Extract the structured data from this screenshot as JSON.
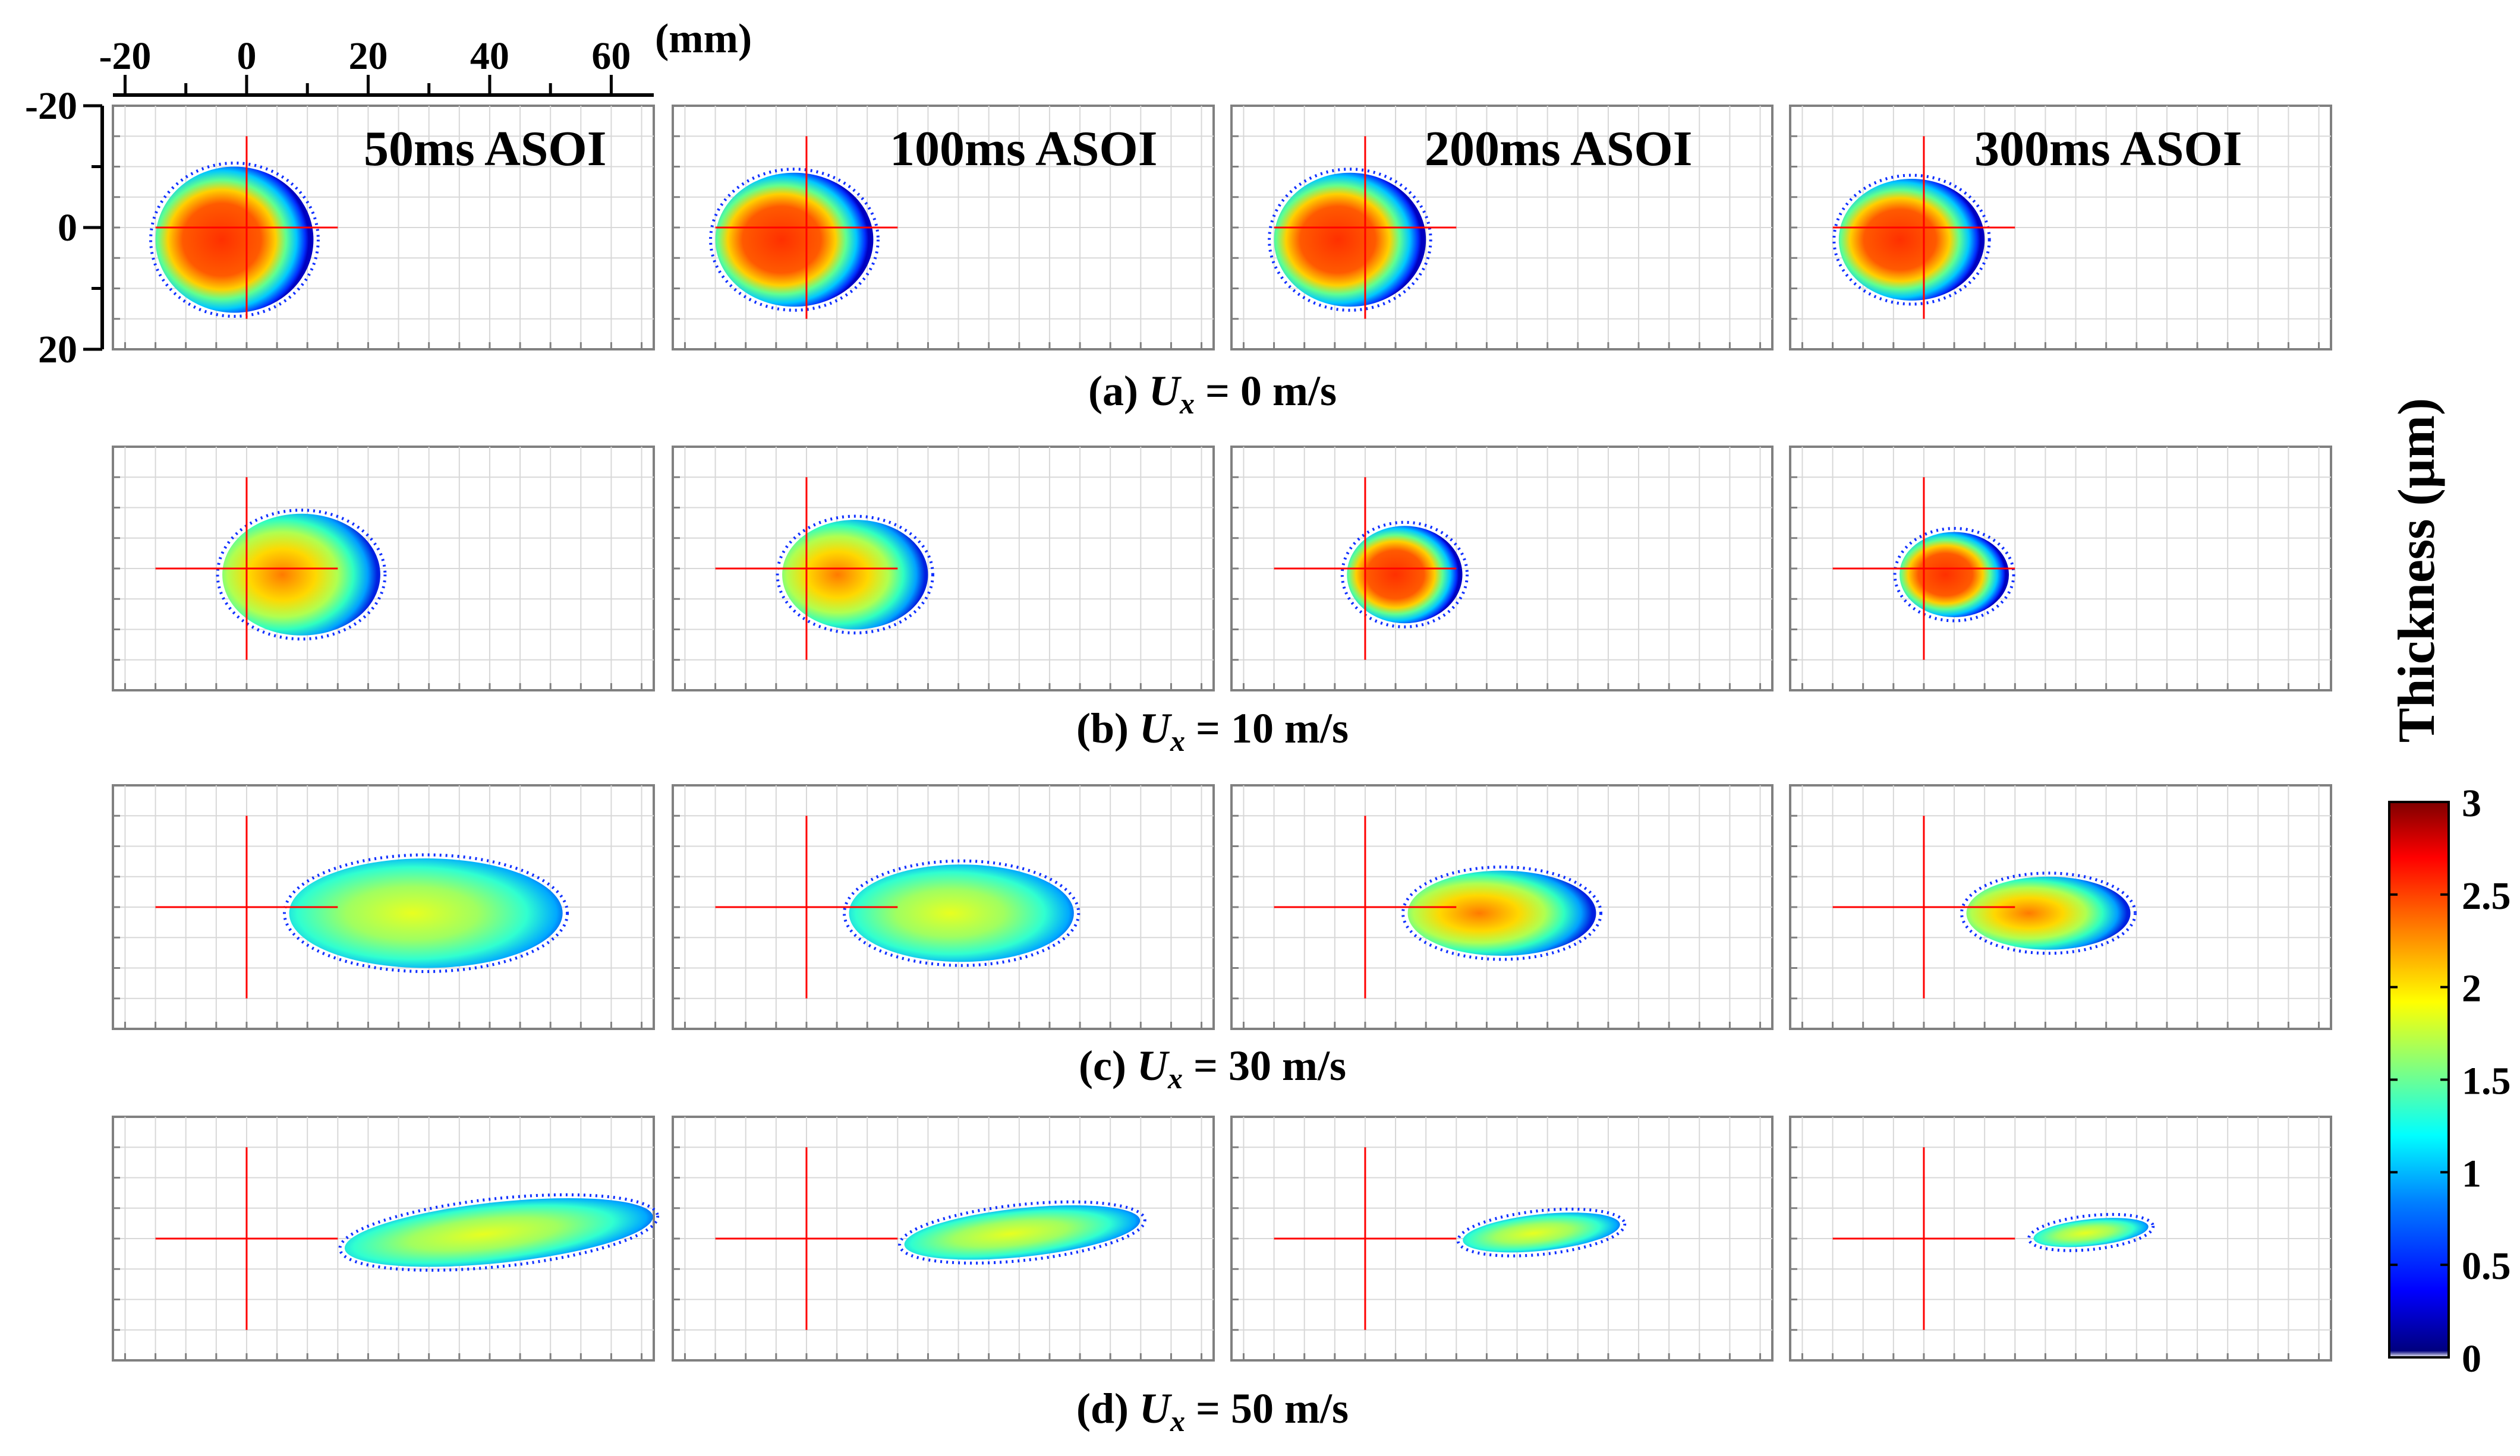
{
  "figure": {
    "axis_unit": "(mm)",
    "x_ticks": [
      "-20",
      "0",
      "20",
      "40",
      "60"
    ],
    "y_ticks": [
      "-20",
      "0",
      "20"
    ],
    "time_labels": [
      "50ms ASOI",
      "100ms ASOI",
      "200ms ASOI",
      "300ms ASOI"
    ],
    "rows": [
      {
        "prefix": "(a) ",
        "var": "U",
        "sub": "x",
        "suffix": " = 0 m/s"
      },
      {
        "prefix": "(b) ",
        "var": "U",
        "sub": "x",
        "suffix": " = 10 m/s"
      },
      {
        "prefix": "(c) ",
        "var": "U",
        "sub": "x",
        "suffix": " = 30 m/s"
      },
      {
        "prefix": "(d) ",
        "var": "U",
        "sub": "x",
        "suffix": " = 50 m/s"
      }
    ],
    "colorbar": {
      "title": "Thickness (μm)",
      "ticks": [
        "0",
        "0.5",
        "1",
        "1.5",
        "2",
        "2.5",
        "3"
      ],
      "colors": [
        "#ffffff",
        "#00007f",
        "#0000ff",
        "#0080ff",
        "#00ffff",
        "#80ff80",
        "#ffff00",
        "#ff8000",
        "#ff0000",
        "#7f0000"
      ]
    },
    "crosshair_color": "#ff0000"
  },
  "chart_data": {
    "type": "heatmap",
    "x_unit": "mm",
    "y_unit": "mm",
    "x_range": [
      -22,
      67
    ],
    "y_range": [
      -20,
      20
    ],
    "x_ticks": [
      -20,
      0,
      20,
      40,
      60
    ],
    "y_ticks": [
      -20,
      0,
      20
    ],
    "times_ms": [
      50,
      100,
      200,
      300
    ],
    "crossflow_velocity_ms": [
      0,
      10,
      30,
      50
    ],
    "thickness_range_um": [
      0,
      3
    ],
    "grid": true,
    "colorbar": "right",
    "spray_footprints": [
      {
        "ux": 0,
        "t": 50,
        "x_min": -15,
        "x_max": 11,
        "y_half": 12,
        "peak_um": 2.6
      },
      {
        "ux": 0,
        "t": 100,
        "x_min": -15,
        "x_max": 11,
        "y_half": 11,
        "peak_um": 2.7
      },
      {
        "ux": 0,
        "t": 200,
        "x_min": -15,
        "x_max": 10,
        "y_half": 11,
        "peak_um": 2.8
      },
      {
        "ux": 0,
        "t": 300,
        "x_min": -14,
        "x_max": 10,
        "y_half": 10,
        "peak_um": 2.8
      },
      {
        "ux": 10,
        "t": 50,
        "x_min": -4,
        "x_max": 22,
        "y_half": 10,
        "peak_um": 2.4
      },
      {
        "ux": 10,
        "t": 100,
        "x_min": -4,
        "x_max": 20,
        "y_half": 9,
        "peak_um": 2.5
      },
      {
        "ux": 10,
        "t": 200,
        "x_min": -3,
        "x_max": 16,
        "y_half": 8,
        "peak_um": 2.7
      },
      {
        "ux": 10,
        "t": 300,
        "x_min": -4,
        "x_max": 14,
        "y_half": 7,
        "peak_um": 2.7
      },
      {
        "ux": 30,
        "t": 50,
        "x_min": 7,
        "x_max": 52,
        "y_half": 9,
        "peak_um": 1.8
      },
      {
        "ux": 30,
        "t": 100,
        "x_min": 7,
        "x_max": 44,
        "y_half": 8,
        "peak_um": 1.8
      },
      {
        "ux": 30,
        "t": 200,
        "x_min": 7,
        "x_max": 38,
        "y_half": 7,
        "peak_um": 2.2
      },
      {
        "ux": 30,
        "t": 300,
        "x_min": 7,
        "x_max": 34,
        "y_half": 6,
        "peak_um": 2.2
      },
      {
        "ux": 50,
        "t": 50,
        "x_min": 16,
        "x_max": 67,
        "y_half": 5,
        "peak_um": 1.6
      },
      {
        "ux": 50,
        "t": 100,
        "x_min": 16,
        "x_max": 55,
        "y_half": 4,
        "peak_um": 1.6
      },
      {
        "ux": 50,
        "t": 200,
        "x_min": 16,
        "x_max": 42,
        "y_half": 3,
        "peak_um": 1.6
      },
      {
        "ux": 50,
        "t": 300,
        "x_min": 18,
        "x_max": 37,
        "y_half": 2.2,
        "peak_um": 1.5
      }
    ]
  }
}
